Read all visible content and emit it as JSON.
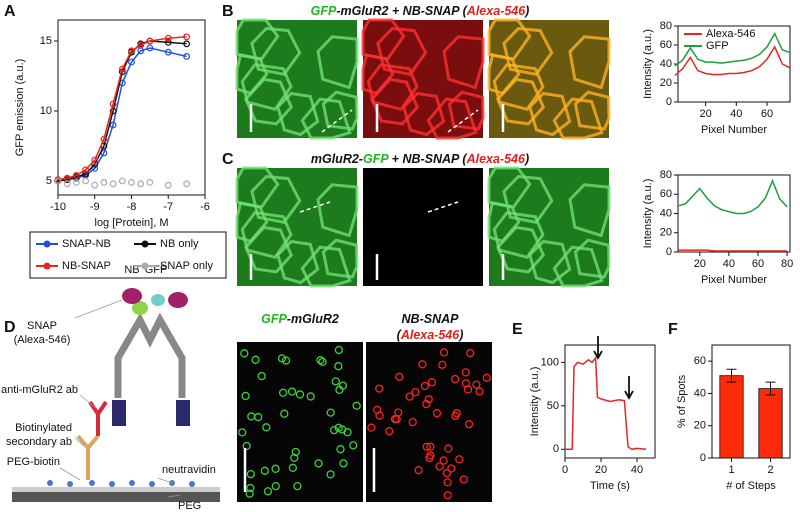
{
  "panel_labels": [
    "A",
    "B",
    "C",
    "D",
    "E",
    "F"
  ],
  "chart_data": [
    {
      "type": "scatter",
      "xlabel": "log [Protein], M",
      "ylabel": "GFP emission (a.u.)",
      "x": [
        -10,
        -9.75,
        -9.5,
        -9.25,
        -9,
        -8.75,
        -8.5,
        -8.25,
        -8,
        -7.75,
        -7.5,
        -7,
        -6.5
      ],
      "series": [
        {
          "name": "SNAP-NB",
          "color": "#1f4fe0",
          "fit": true,
          "values": [
            5.0,
            5.1,
            5.2,
            5.4,
            5.9,
            7.0,
            9.0,
            12.0,
            13.5,
            14.3,
            14.5,
            14.2,
            13.9
          ]
        },
        {
          "name": "NB only",
          "color": "#111111",
          "fit": true,
          "values": [
            5.0,
            5.1,
            5.3,
            5.5,
            6.2,
            7.5,
            10.0,
            12.8,
            14.2,
            14.8,
            15.0,
            14.9,
            14.8
          ]
        },
        {
          "name": "NB-SNAP",
          "color": "#e8261f",
          "fit": true,
          "values": [
            5.1,
            5.2,
            5.4,
            5.8,
            6.5,
            8.0,
            10.5,
            13.0,
            14.3,
            14.7,
            15.0,
            15.2,
            15.3
          ]
        },
        {
          "name": "SNAP only",
          "color": "#aaaaaa",
          "fit": false,
          "values": [
            5.0,
            4.8,
            4.9,
            5.0,
            4.7,
            4.9,
            4.8,
            5.0,
            4.9,
            4.8,
            4.9,
            4.7,
            4.8
          ]
        }
      ],
      "xlim": [
        -10,
        -6
      ],
      "xticks": [
        -10,
        -9,
        -8,
        -7,
        -6
      ],
      "ylim": [
        4,
        16.5
      ],
      "yticks": [
        5,
        10,
        15
      ],
      "legend": "below"
    },
    {
      "type": "line",
      "xlabel": "Pixel Number",
      "ylabel": "Intensity (a.u.)",
      "x": [
        0,
        5,
        10,
        15,
        20,
        25,
        30,
        35,
        40,
        45,
        50,
        55,
        60,
        65,
        70,
        75
      ],
      "series": [
        {
          "name": "Alexa-546",
          "color": "#e8261f",
          "values": [
            28,
            35,
            47,
            33,
            30,
            29,
            29,
            30,
            30,
            31,
            33,
            37,
            45,
            58,
            40,
            36
          ]
        },
        {
          "name": "GFP",
          "color": "#1f9e3a",
          "values": [
            38,
            44,
            57,
            45,
            42,
            42,
            41,
            42,
            43,
            44,
            46,
            50,
            58,
            72,
            55,
            52
          ]
        }
      ],
      "xlim": [
        2,
        75
      ],
      "xticks": [
        20,
        40,
        60
      ],
      "ylim": [
        0,
        80
      ],
      "yticks": [
        0,
        20,
        40,
        60,
        80
      ],
      "legend": "upper left"
    },
    {
      "type": "line",
      "xlabel": "Pixel Number",
      "ylabel": "Intensity (a.u.)",
      "x": [
        5,
        10,
        15,
        20,
        25,
        30,
        35,
        40,
        45,
        50,
        55,
        60,
        65,
        70,
        75,
        80
      ],
      "series": [
        {
          "color": "#e8261f",
          "values": [
            2,
            2,
            2,
            2,
            2,
            1,
            1,
            1,
            1,
            1,
            1,
            1,
            1,
            1,
            1,
            1
          ]
        },
        {
          "color": "#1f9e3a",
          "values": [
            48,
            50,
            58,
            66,
            56,
            48,
            44,
            42,
            40,
            40,
            42,
            47,
            56,
            74,
            55,
            47
          ]
        }
      ],
      "xlim": [
        5,
        82
      ],
      "xticks": [
        20,
        40,
        60,
        80
      ],
      "ylim": [
        0,
        80
      ],
      "yticks": [
        0,
        20,
        40,
        60,
        80
      ]
    },
    {
      "type": "line",
      "xlabel": "Time (s)",
      "ylabel": "Intensity (a.u.)",
      "x": [
        0,
        2,
        4,
        5,
        7,
        10,
        13,
        15,
        17,
        18,
        20,
        25,
        30,
        33,
        35,
        37,
        40,
        45
      ],
      "series": [
        {
          "color": "#e8261f",
          "values": [
            0,
            0,
            0,
            95,
            100,
            98,
            103,
            100,
            105,
            60,
            58,
            55,
            57,
            56,
            3,
            0,
            1,
            0
          ]
        }
      ],
      "xlim": [
        0,
        50
      ],
      "xticks": [
        0,
        20,
        40
      ],
      "ylim": [
        -10,
        120
      ],
      "yticks": [
        0,
        50,
        100
      ]
    },
    {
      "type": "bar",
      "xlabel": "# of Steps",
      "ylabel": "% of Spots",
      "categories": [
        "1",
        "2"
      ],
      "values": [
        51,
        43
      ],
      "errors": [
        4,
        4
      ],
      "color": "#ff2a0a",
      "ylim": [
        0,
        70
      ],
      "yticks": [
        0,
        20,
        40,
        60
      ]
    }
  ],
  "image_titles": [
    [
      {
        "text": "GFP",
        "color": "#22b422"
      },
      {
        "text": "-mGluR2 + NB-SNAP (",
        "color": "#111111"
      },
      {
        "text": "Alexa-546",
        "color": "#e0201a"
      },
      {
        "text": ")",
        "color": "#111111"
      }
    ],
    [
      {
        "text": "mGluR2-",
        "color": "#111111"
      },
      {
        "text": "GFP",
        "color": "#22b422"
      },
      {
        "text": " + NB-SNAP (",
        "color": "#111111"
      },
      {
        "text": "Alexa-546",
        "color": "#e0201a"
      },
      {
        "text": ")",
        "color": "#111111"
      }
    ],
    [
      {
        "text": "GFP",
        "color": "#22b422"
      },
      {
        "text": "-mGluR2",
        "color": "#111111"
      }
    ],
    [
      {
        "text": "NB-SNAP",
        "color": "#111111"
      }
    ],
    [
      {
        "text": "(",
        "color": "#111111"
      },
      {
        "text": "Alexa-546",
        "color": "#e0201a"
      },
      {
        "text": ")",
        "color": "#111111"
      }
    ]
  ],
  "diagram": {
    "labels": [
      "NB",
      "GFP",
      "SNAP",
      "(Alexa-546)",
      "anti-mGluR2 ab",
      "Biotinylated",
      "secondary ab",
      "PEG-biotin",
      "neutravidin",
      "PEG"
    ]
  }
}
